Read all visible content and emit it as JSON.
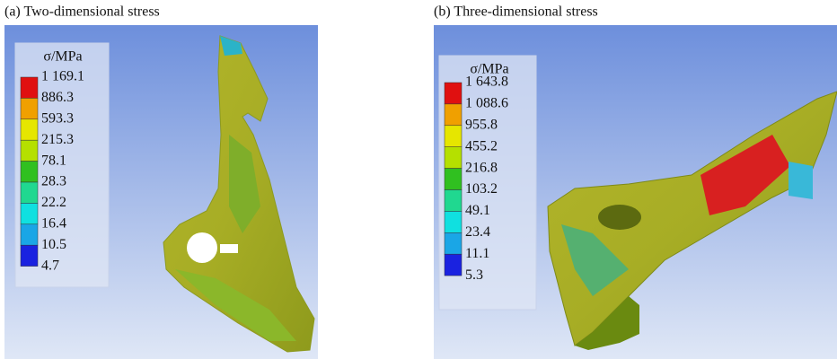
{
  "panels": [
    {
      "caption": "(a) Two-dimensional stress",
      "legend": {
        "title": "σ/MPa",
        "labels": [
          "1 169.1",
          "886.3",
          "593.3",
          "215.3",
          "78.1",
          "28.3",
          "22.2",
          "16.4",
          "10.5",
          "4.7"
        ]
      }
    },
    {
      "caption": "(b) Three-dimensional stress",
      "legend": {
        "title": "σ/MPa",
        "labels": [
          "1 643.8",
          "1 088.6",
          "955.8",
          "455.2",
          "216.8",
          "103.2",
          "49.1",
          "23.4",
          "11.1",
          "5.3"
        ]
      }
    }
  ]
}
